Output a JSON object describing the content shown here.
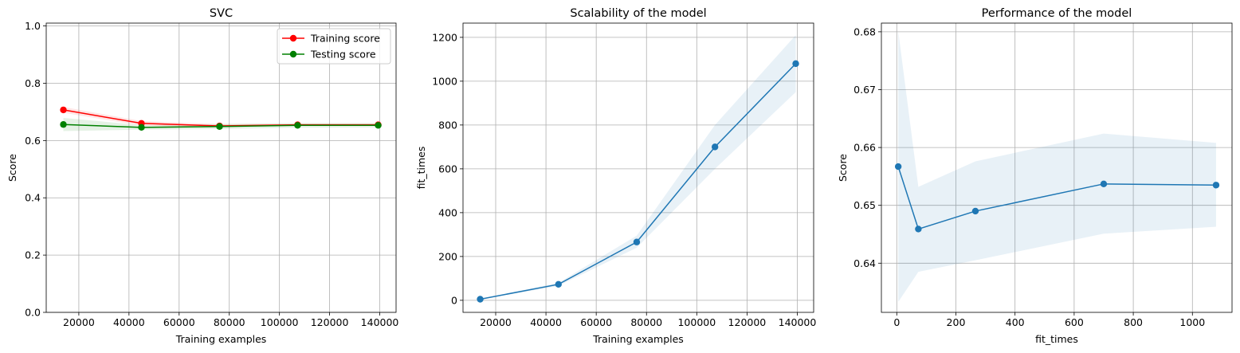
{
  "chart_data": [
    {
      "type": "line",
      "title": "SVC",
      "xlabel": "Training examples",
      "ylabel": "Score",
      "xlim": [
        7000,
        146500
      ],
      "ylim": [
        0.0,
        1.01
      ],
      "xticks": [
        20000,
        40000,
        60000,
        80000,
        100000,
        120000,
        140000
      ],
      "yticks": [
        0.0,
        0.2,
        0.4,
        0.6,
        0.8,
        1.0
      ],
      "ytick_decimals": 1,
      "grid": true,
      "legend": "top-right",
      "x": [
        13839,
        44972,
        76106,
        107239,
        139373
      ],
      "series": [
        {
          "name": "Training score",
          "color": "#ff0000",
          "values": [
            0.707,
            0.66,
            0.651,
            0.655,
            0.655
          ],
          "band_lower": [
            0.697,
            0.652,
            0.645,
            0.652,
            0.652
          ],
          "band_upper": [
            0.717,
            0.668,
            0.657,
            0.658,
            0.658
          ]
        },
        {
          "name": "Testing score",
          "color": "#008000",
          "values": [
            0.656,
            0.646,
            0.649,
            0.653,
            0.653
          ],
          "band_lower": [
            0.633,
            0.638,
            0.64,
            0.645,
            0.646
          ],
          "band_upper": [
            0.679,
            0.654,
            0.658,
            0.661,
            0.661
          ]
        }
      ]
    },
    {
      "type": "line",
      "title": "Scalability of the model",
      "xlabel": "Training examples",
      "ylabel": "fit_times",
      "xlim": [
        7000,
        146500
      ],
      "ylim": [
        -55,
        1265
      ],
      "xticks": [
        20000,
        40000,
        60000,
        80000,
        100000,
        120000,
        140000
      ],
      "yticks": [
        0,
        200,
        400,
        600,
        800,
        1000,
        1200
      ],
      "ytick_decimals": 0,
      "grid": true,
      "x": [
        13839,
        44972,
        76106,
        107239,
        139373
      ],
      "series": [
        {
          "color": "#1f77b4",
          "values": [
            5,
            73,
            266,
            700,
            1080
          ],
          "band_lower": [
            3,
            66,
            240,
            600,
            950
          ],
          "band_upper": [
            7,
            80,
            295,
            800,
            1210
          ]
        }
      ]
    },
    {
      "type": "line",
      "title": "Performance of the model",
      "xlabel": "fit_times",
      "ylabel": "Score",
      "xlim": [
        -52,
        1134
      ],
      "ylim": [
        0.6315,
        0.6815
      ],
      "xticks": [
        0,
        200,
        400,
        600,
        800,
        1000
      ],
      "yticks": [
        0.64,
        0.65,
        0.66,
        0.67,
        0.68
      ],
      "ytick_decimals": 2,
      "grid": true,
      "x": [
        5,
        73,
        266,
        700,
        1080
      ],
      "series": [
        {
          "color": "#1f77b4",
          "values": [
            0.6567,
            0.6459,
            0.649,
            0.6537,
            0.6535
          ],
          "band_lower": [
            0.6333,
            0.6385,
            0.6405,
            0.6451,
            0.6463
          ],
          "band_upper": [
            0.6801,
            0.6532,
            0.6576,
            0.6624,
            0.6608
          ]
        }
      ]
    }
  ]
}
